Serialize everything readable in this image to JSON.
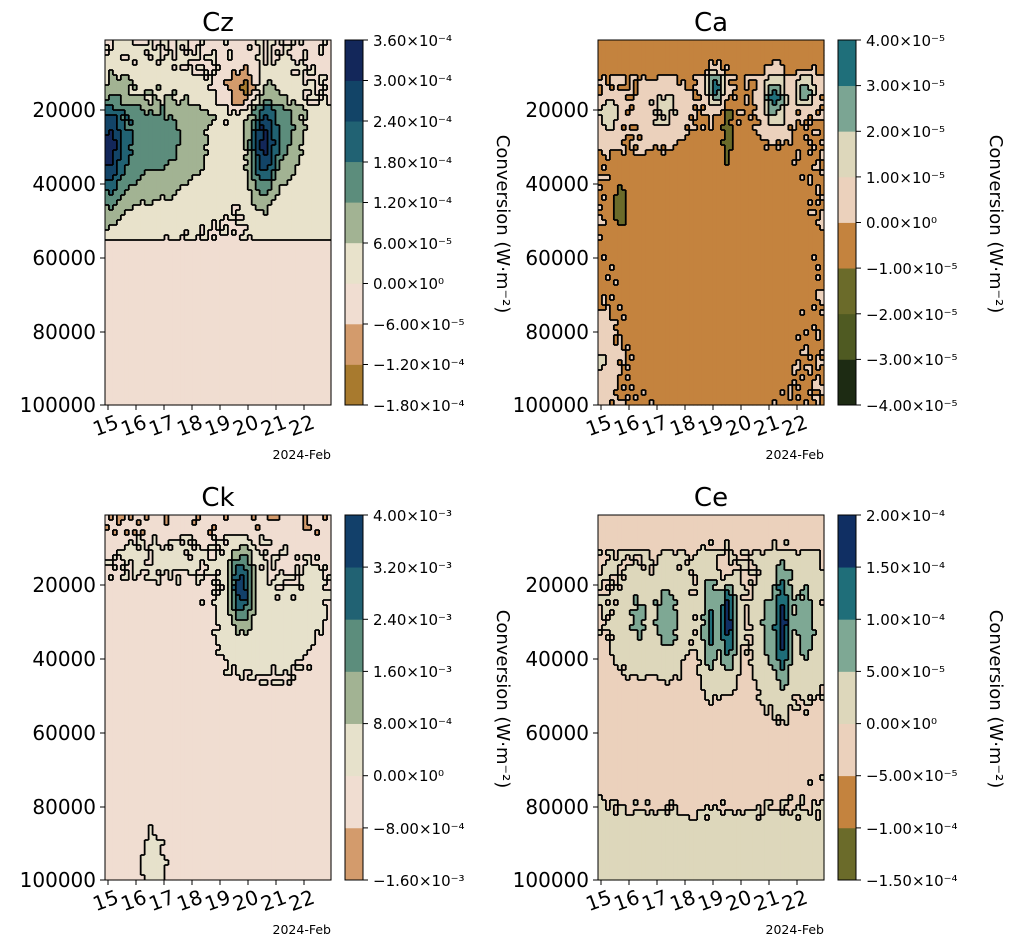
{
  "colors": {
    "contour_line": "#000000",
    "cz": [
      "#a87a2e",
      "#d39b6c",
      "#f0ddd1",
      "#e8e2cb",
      "#a2b393",
      "#5c8d7c",
      "#216273",
      "#124467",
      "#13275a"
    ],
    "ca": [
      "#1d2b13",
      "#4f5a22",
      "#6b6b2a",
      "#c4833e",
      "#ebd1bc",
      "#ddd7bb",
      "#7ba593",
      "#1f6f7a",
      "#102357"
    ],
    "ck": [
      "#d39b6c",
      "#f0ddd1",
      "#e6e1cb",
      "#a2b393",
      "#5c8d7c",
      "#216273",
      "#12406a"
    ],
    "ce": [
      "#6b6b2a",
      "#c4833e",
      "#ebd1bc",
      "#ddd7bb",
      "#7ea894",
      "#1f6e79",
      "#102f63"
    ]
  },
  "chart_data": [
    {
      "type": "heatmap",
      "title": "Cz",
      "x_ticks": [
        "15",
        "16",
        "17",
        "18",
        "19",
        "20",
        "21",
        "22"
      ],
      "x_offset_label": "2024-Feb",
      "y_ticks": [
        "20000",
        "40000",
        "60000",
        "80000",
        "100000"
      ],
      "ylim": [
        1000,
        100000
      ],
      "y_inverted": true,
      "colorbar": {
        "label": "Conversion (W·m⁻²)",
        "ticks": [
          "−1.80×10⁻⁴",
          "−1.20×10⁻⁴",
          "−6.00×10⁻⁵",
          "0.00×10⁰",
          "6.00×10⁻⁵",
          "1.20×10⁻⁴",
          "1.80×10⁻⁴",
          "2.40×10⁻⁴",
          "3.00×10⁻⁴",
          "3.60×10⁻⁴"
        ],
        "levels": [
          -0.00018,
          -0.00012,
          -6e-05,
          0,
          6e-05,
          0.00012,
          0.00018,
          0.00024,
          0.0003,
          0.00036
        ]
      },
      "features": [
        {
          "x": 15.0,
          "y": 31000,
          "sx": 0.35,
          "sy": 11000,
          "a": 0.00027
        },
        {
          "x": 15.8,
          "y": 29000,
          "sx": 0.5,
          "sy": 12000,
          "a": 0.00014
        },
        {
          "x": 16.9,
          "y": 29000,
          "sx": 0.55,
          "sy": 11000,
          "a": 0.00011
        },
        {
          "x": 18.0,
          "y": 28000,
          "sx": 0.6,
          "sy": 12000,
          "a": 7e-05
        },
        {
          "x": 20.55,
          "y": 29000,
          "sx": 0.35,
          "sy": 10000,
          "a": 0.00029
        },
        {
          "x": 21.4,
          "y": 26000,
          "sx": 0.4,
          "sy": 9000,
          "a": 0.00011
        },
        {
          "x": 19.9,
          "y": 14500,
          "sx": 0.45,
          "sy": 4000,
          "a": -0.00013
        },
        {
          "x": 18.0,
          "y": 70000,
          "sx": 3.0,
          "sy": 25000,
          "a": -3e-05
        }
      ],
      "base": 2e-05,
      "base_decay_y": 55000,
      "top_band": {
        "y_max": 19000,
        "value": -3e-05
      }
    },
    {
      "type": "heatmap",
      "title": "Ca",
      "x_ticks": [
        "15",
        "16",
        "17",
        "18",
        "19",
        "20",
        "21",
        "22"
      ],
      "x_offset_label": "2024-Feb",
      "y_ticks": [
        "20000",
        "40000",
        "60000",
        "80000",
        "100000"
      ],
      "ylim": [
        1000,
        100000
      ],
      "y_inverted": true,
      "colorbar": {
        "label": "Conversion (W·m⁻²)",
        "ticks": [
          "−4.00×10⁻⁵",
          "−3.00×10⁻⁵",
          "−2.00×10⁻⁵",
          "−1.00×10⁻⁵",
          "0.00×10⁰",
          "1.00×10⁻⁵",
          "2.00×10⁻⁵",
          "3.00×10⁻⁵",
          "4.00×10⁻⁵"
        ],
        "levels": [
          -4e-05,
          -3e-05,
          -2e-05,
          -1e-05,
          0,
          1e-05,
          2e-05,
          3e-05,
          4e-05
        ]
      },
      "features": [
        {
          "x": 19.1,
          "y": 14000,
          "sx": 0.25,
          "sy": 3500,
          "a": 3.5e-05
        },
        {
          "x": 21.2,
          "y": 17000,
          "sx": 0.3,
          "sy": 5000,
          "a": 3.2e-05
        },
        {
          "x": 22.3,
          "y": 14500,
          "sx": 0.25,
          "sy": 3000,
          "a": 2.8e-05
        },
        {
          "x": 17.2,
          "y": 20000,
          "sx": 0.6,
          "sy": 5000,
          "a": 1.3e-05
        },
        {
          "x": 15.3,
          "y": 22000,
          "sx": 0.3,
          "sy": 4000,
          "a": 1.5e-05
        },
        {
          "x": 15.7,
          "y": 46000,
          "sx": 0.2,
          "sy": 4500,
          "a": -1.8e-05
        },
        {
          "x": 19.5,
          "y": 26000,
          "sx": 0.15,
          "sy": 7000,
          "a": -1.4e-05
        },
        {
          "x": 15.0,
          "y": 88000,
          "sx": 0.3,
          "sy": 6000,
          "a": 1.2e-05
        },
        {
          "x": 19.0,
          "y": 60000,
          "sx": 2.0,
          "sy": 30000,
          "a": -4e-06
        }
      ],
      "base": 0.0,
      "top_band": {
        "y_max": 10000,
        "value": -4e-06
      }
    },
    {
      "type": "heatmap",
      "title": "Ck",
      "x_ticks": [
        "15",
        "16",
        "17",
        "18",
        "19",
        "20",
        "21",
        "22"
      ],
      "x_offset_label": "2024-Feb",
      "y_ticks": [
        "20000",
        "40000",
        "60000",
        "80000",
        "100000"
      ],
      "ylim": [
        1000,
        100000
      ],
      "y_inverted": true,
      "colorbar": {
        "label": "Conversion (W·m⁻²)",
        "ticks": [
          "−1.60×10⁻³",
          "−8.00×10⁻⁴",
          "0.00×10⁰",
          "8.00×10⁻⁴",
          "1.60×10⁻³",
          "2.40×10⁻³",
          "3.20×10⁻³",
          "4.00×10⁻³"
        ],
        "levels": [
          -0.0016,
          -0.0008,
          0,
          0.0008,
          0.0016,
          0.0024,
          0.0032,
          0.004
        ]
      },
      "features": [
        {
          "x": 19.75,
          "y": 20000,
          "sx": 0.28,
          "sy": 6500,
          "a": 0.0037
        },
        {
          "x": 19.9,
          "y": 30000,
          "sx": 0.9,
          "sy": 12000,
          "a": 0.0006
        },
        {
          "x": 21.6,
          "y": 32000,
          "sx": 0.8,
          "sy": 12000,
          "a": 0.0004
        },
        {
          "x": 22.4,
          "y": 22000,
          "sx": 0.3,
          "sy": 5000,
          "a": 0.0007
        },
        {
          "x": 17.0,
          "y": 13000,
          "sx": 1.5,
          "sy": 4000,
          "a": 0.0005
        },
        {
          "x": 16.6,
          "y": 96000,
          "sx": 0.35,
          "sy": 9000,
          "a": 0.0006
        }
      ],
      "base": -0.0003,
      "top_band": {
        "y_max": 6000,
        "value": -0.0004
      }
    },
    {
      "type": "heatmap",
      "title": "Ce",
      "x_ticks": [
        "15",
        "16",
        "17",
        "18",
        "19",
        "20",
        "21",
        "22"
      ],
      "x_offset_label": "2024-Feb",
      "y_ticks": [
        "20000",
        "40000",
        "60000",
        "80000",
        "100000"
      ],
      "ylim": [
        1000,
        100000
      ],
      "y_inverted": true,
      "colorbar": {
        "label": "Conversion (W·m⁻²)",
        "ticks": [
          "−1.50×10⁻⁴",
          "−1.00×10⁻⁴",
          "−5.00×10⁻⁵",
          "0.00×10⁰",
          "5.00×10⁻⁵",
          "1.00×10⁻⁴",
          "1.50×10⁻⁴",
          "2.00×10⁻⁴"
        ],
        "levels": [
          -0.00015,
          -0.0001,
          -5e-05,
          0,
          5e-05,
          0.0001,
          0.00015,
          0.0002
        ]
      },
      "features": [
        {
          "x": 18.9,
          "y": 31000,
          "sx": 0.22,
          "sy": 11000,
          "a": 0.00011
        },
        {
          "x": 19.55,
          "y": 30000,
          "sx": 0.2,
          "sy": 9500,
          "a": 0.00017
        },
        {
          "x": 21.5,
          "y": 31000,
          "sx": 0.2,
          "sy": 11000,
          "a": 0.00016
        },
        {
          "x": 21.0,
          "y": 33000,
          "sx": 0.3,
          "sy": 11000,
          "a": 7e-05
        },
        {
          "x": 22.3,
          "y": 31000,
          "sx": 0.3,
          "sy": 10000,
          "a": 8e-05
        },
        {
          "x": 17.4,
          "y": 30000,
          "sx": 0.35,
          "sy": 8500,
          "a": 8e-05
        },
        {
          "x": 16.3,
          "y": 30000,
          "sx": 0.4,
          "sy": 8000,
          "a": 6e-05
        },
        {
          "x": 19.5,
          "y": 16500,
          "sx": 0.18,
          "sy": 3000,
          "a": -7e-05
        },
        {
          "x": 18.3,
          "y": 63000,
          "sx": 3.0,
          "sy": 18000,
          "a": -2e-05
        },
        {
          "x": 18.0,
          "y": 95000,
          "sx": 4.0,
          "sy": 10000,
          "a": 3e-05
        }
      ],
      "base": 0.0,
      "top_band": {
        "y_max": 10000,
        "value": -2e-05
      }
    }
  ]
}
